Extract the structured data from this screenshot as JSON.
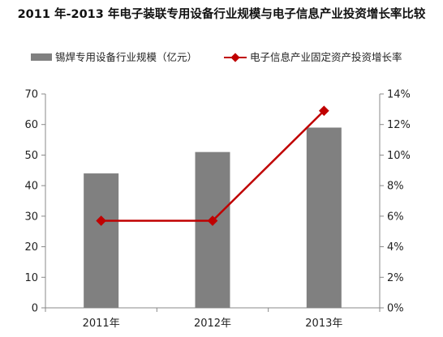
{
  "chart_data": {
    "type": "bar",
    "title": "2011 年-2013 年电子装联专用设备行业规模与电子信息产业投资增长率比较",
    "categories": [
      "2011年",
      "2012年",
      "2013年"
    ],
    "series": [
      {
        "name": "锡焊专用设备行业规模（亿元）",
        "type": "bar",
        "axis": "left",
        "values": [
          44,
          51,
          59
        ],
        "color": "#808080"
      },
      {
        "name": "电子信息产业固定资产投资增长率",
        "type": "line",
        "axis": "right",
        "values": [
          0.057,
          0.057,
          0.129
        ],
        "color": "#c00000"
      }
    ],
    "y_left": {
      "lim": [
        0,
        70
      ],
      "ticks": [
        "0",
        "10",
        "20",
        "30",
        "40",
        "50",
        "60",
        "70"
      ]
    },
    "y_right": {
      "lim": [
        0,
        0.14
      ],
      "ticks": [
        "0%",
        "2%",
        "4%",
        "6%",
        "8%",
        "10%",
        "12%",
        "14%"
      ]
    },
    "legend_position": "top",
    "grid": false
  }
}
